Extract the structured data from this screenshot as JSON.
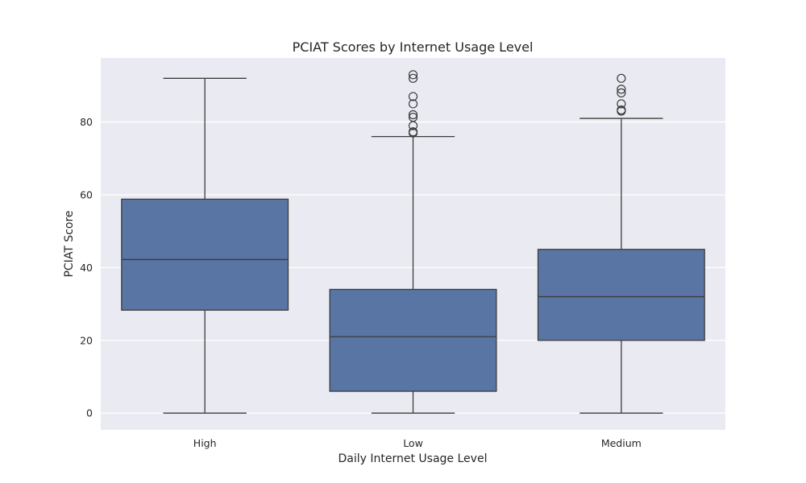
{
  "chart_data": {
    "type": "box",
    "title": "PCIAT Scores by Internet Usage Level",
    "xlabel": "Daily Internet Usage Level",
    "ylabel": "PCIAT Score",
    "categories": [
      "High",
      "Low",
      "Medium"
    ],
    "boxes": [
      {
        "category": "High",
        "whisker_low": 0,
        "q1": 28.3,
        "median": 42.2,
        "q3": 58.8,
        "whisker_high": 92,
        "outliers": []
      },
      {
        "category": "Low",
        "whisker_low": 0,
        "q1": 6,
        "median": 21,
        "q3": 34,
        "whisker_high": 76,
        "outliers": [
          77,
          77.3,
          79,
          81.3,
          82,
          85,
          87,
          92,
          93
        ]
      },
      {
        "category": "Medium",
        "whisker_low": 0,
        "q1": 20,
        "median": 32,
        "q3": 45,
        "whisker_high": 81,
        "outliers": [
          83,
          83.3,
          85,
          88,
          89,
          92
        ]
      }
    ],
    "y_ticks": [
      0,
      20,
      40,
      60,
      80
    ],
    "ylim": [
      -4.6,
      97.6
    ],
    "grid": true,
    "colors": {
      "box_fill": "#5875a4",
      "line": "#3d3d3d",
      "plot_background": "#eaeaf2",
      "grid": "#ffffff"
    }
  }
}
